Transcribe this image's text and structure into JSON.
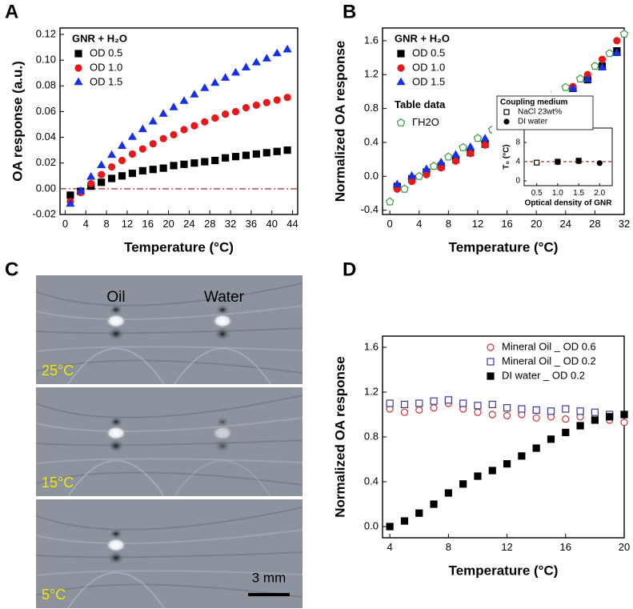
{
  "chart_data": [
    {
      "type": "scatter",
      "panel": "A",
      "x_label": "Temperature (°C)",
      "y_label": "OA response (a.u.)",
      "xlim": [
        -1,
        45
      ],
      "ylim": [
        -0.02,
        0.125
      ],
      "xticks": [
        0,
        4,
        8,
        12,
        16,
        20,
        24,
        28,
        32,
        36,
        40,
        44
      ],
      "yticks": [
        {
          "value": -0.02,
          "label": "-0.02"
        },
        {
          "value": 0,
          "label": "0.00"
        },
        {
          "value": 0.02,
          "label": "0.02"
        },
        {
          "value": 0.04,
          "label": "0.04"
        },
        {
          "value": 0.06,
          "label": "0.06"
        },
        {
          "value": 0.08,
          "label": "0.08"
        },
        {
          "value": 0.1,
          "label": "0.10"
        },
        {
          "value": 0.12,
          "label": "0.12"
        }
      ],
      "legend": "upper left",
      "legend_title": "GNR + H₂O",
      "reference_line": {
        "value": 0,
        "color": "#a8322a"
      },
      "x": [
        1,
        3,
        5,
        7,
        9,
        11,
        13,
        15,
        17,
        19,
        21,
        23,
        25,
        27,
        29,
        31,
        33,
        35,
        37,
        39,
        41,
        43
      ],
      "series": [
        {
          "name": "OD 0.5",
          "color": "#000000",
          "marker": "square",
          "filled": true,
          "values": [
            -0.005,
            -0.002,
            0.002,
            0.005,
            0.008,
            0.01,
            0.012,
            0.014,
            0.015,
            0.016,
            0.018,
            0.019,
            0.02,
            0.021,
            0.022,
            0.024,
            0.025,
            0.026,
            0.027,
            0.028,
            0.029,
            0.03
          ]
        },
        {
          "name": "OD 1.0",
          "color": "#e8191b",
          "marker": "circle",
          "filled": true,
          "values": [
            -0.01,
            -0.003,
            0.004,
            0.011,
            0.017,
            0.022,
            0.027,
            0.031,
            0.035,
            0.039,
            0.042,
            0.046,
            0.049,
            0.052,
            0.055,
            0.058,
            0.06,
            0.063,
            0.065,
            0.067,
            0.069,
            0.071
          ]
        },
        {
          "name": "OD 1.5",
          "color": "#1530e8",
          "marker": "triangle",
          "filled": true,
          "values": [
            -0.012,
            -0.002,
            0.009,
            0.018,
            0.026,
            0.033,
            0.04,
            0.046,
            0.052,
            0.058,
            0.063,
            0.068,
            0.073,
            0.078,
            0.082,
            0.086,
            0.09,
            0.094,
            0.098,
            0.101,
            0.105,
            0.108
          ]
        }
      ]
    },
    {
      "type": "scatter",
      "panel": "B",
      "x_label": "Temperature (°C)",
      "y_label": "Normalized OA response",
      "xlim": [
        -1,
        32
      ],
      "ylim": [
        -0.45,
        1.75
      ],
      "xticks": [
        0,
        4,
        8,
        12,
        16,
        20,
        24,
        28,
        32
      ],
      "yticks": [
        -0.4,
        {
          "value": 0,
          "label": "0.0"
        },
        0.4,
        0.8,
        1.2,
        1.6
      ],
      "legend": "upper left",
      "legend_title": "GNR + H₂O",
      "legend_title_2": "Table data",
      "x": [
        1,
        3,
        5,
        7,
        9,
        11,
        13,
        15,
        17,
        19,
        21,
        23,
        25,
        27,
        29,
        31
      ],
      "series": [
        {
          "name": "OD 0.5",
          "color": "#000000",
          "marker": "square",
          "filled": true,
          "values": [
            -0.12,
            -0.03,
            0.05,
            0.12,
            0.2,
            0.28,
            0.38,
            0.47,
            0.57,
            0.67,
            0.78,
            0.9,
            1.02,
            1.14,
            1.3,
            1.48
          ]
        },
        {
          "name": "OD 1.0",
          "color": "#e8191b",
          "marker": "circle",
          "filled": true,
          "values": [
            -0.15,
            -0.06,
            0.02,
            0.1,
            0.18,
            0.27,
            0.37,
            0.47,
            0.58,
            0.69,
            0.8,
            0.93,
            1.06,
            1.2,
            1.38,
            1.6
          ]
        },
        {
          "name": "OD 1.5",
          "color": "#1530e8",
          "marker": "triangle",
          "filled": true,
          "values": [
            -0.1,
            0,
            0.08,
            0.16,
            0.25,
            0.34,
            0.44,
            0.53,
            0.62,
            0.72,
            0.82,
            0.92,
            1.03,
            1.14,
            1.28,
            1.45
          ]
        },
        {
          "name": "ΓH2O",
          "color": "#3a9a3a",
          "marker": "pentagon",
          "filled": false,
          "x": [
            0,
            2,
            4,
            6,
            8,
            10,
            12,
            14,
            16,
            18,
            20,
            22,
            24,
            26,
            28,
            30,
            32
          ],
          "values": [
            -0.3,
            -0.15,
            0,
            0.12,
            0.23,
            0.34,
            0.45,
            0.55,
            0.65,
            0.75,
            0.85,
            0.95,
            1.05,
            1.15,
            1.3,
            1.45,
            1.68
          ]
        }
      ]
    },
    {
      "type": "scatter",
      "x_label": "Optical density of GNR",
      "y_label": "T₀ (°C)",
      "xlim": [
        0.2,
        2.3
      ],
      "ylim": [
        -1,
        11
      ],
      "xticks": [
        0.5,
        {
          "value": 1,
          "label": "1.0"
        },
        1.5,
        {
          "value": 2,
          "label": "2.0"
        }
      ],
      "yticks": [
        0,
        4,
        8
      ],
      "legend": "upper left",
      "legend_title": "Coupling medium",
      "reference_line": {
        "value": 4,
        "color": "#a8322a"
      },
      "series": [
        {
          "name": "NaCl 23wt%",
          "color": "#000000",
          "marker": "square",
          "filled": false,
          "x": [
            0.5,
            1,
            1.5
          ],
          "values": [
            3.8,
            4,
            4.2
          ]
        },
        {
          "name": "DI water",
          "color": "#000000",
          "marker": "circle",
          "filled": true,
          "x": [
            1,
            1.5,
            2
          ],
          "values": [
            3.9,
            4.1,
            3.7
          ]
        }
      ]
    },
    {
      "type": "scatter",
      "panel": "D",
      "x_label": "Temperature (°C)",
      "y_label": "Normalized OA response",
      "xlim": [
        3.5,
        20
      ],
      "ylim": [
        -0.1,
        1.7
      ],
      "xticks": [
        4,
        8,
        12,
        16,
        20
      ],
      "yticks": [
        {
          "value": 0,
          "label": "0.0"
        },
        0.4,
        0.8,
        1.2,
        1.6
      ],
      "legend": "upper right",
      "x": [
        4,
        5,
        6,
        7,
        8,
        9,
        10,
        11,
        12,
        13,
        14,
        15,
        16,
        17,
        18,
        19,
        20
      ],
      "series": [
        {
          "name": "Mineral Oil _ OD 0.6",
          "color": "#d03030",
          "marker": "circle",
          "filled": false,
          "values": [
            1.05,
            1.02,
            1.04,
            1.06,
            1.1,
            1.05,
            1.02,
            1,
            0.99,
            1,
            0.97,
            0.98,
            0.96,
            0.98,
            0.97,
            0.95,
            0.93
          ]
        },
        {
          "name": "Mineral Oil _ OD 0.2",
          "color": "#3838a8",
          "marker": "square",
          "filled": false,
          "values": [
            1.1,
            1.09,
            1.1,
            1.12,
            1.13,
            1.1,
            1.08,
            1.09,
            1.06,
            1.05,
            1.04,
            1.03,
            1.05,
            1.03,
            1.02,
            1,
            1
          ]
        },
        {
          "name": "DI water _ OD 0.2",
          "color": "#000000",
          "marker": "square",
          "filled": true,
          "values": [
            0,
            0.05,
            0.12,
            0.2,
            0.3,
            0.38,
            0.45,
            0.5,
            0.56,
            0.63,
            0.7,
            0.78,
            0.84,
            0.9,
            0.95,
            0.98,
            1
          ]
        }
      ]
    }
  ],
  "image_panel": {
    "label": "C",
    "column_labels": [
      "Oil",
      "Water"
    ],
    "temperatures": [
      "25°C",
      "15°C",
      "5°C"
    ],
    "scale_bar": "3 mm"
  }
}
